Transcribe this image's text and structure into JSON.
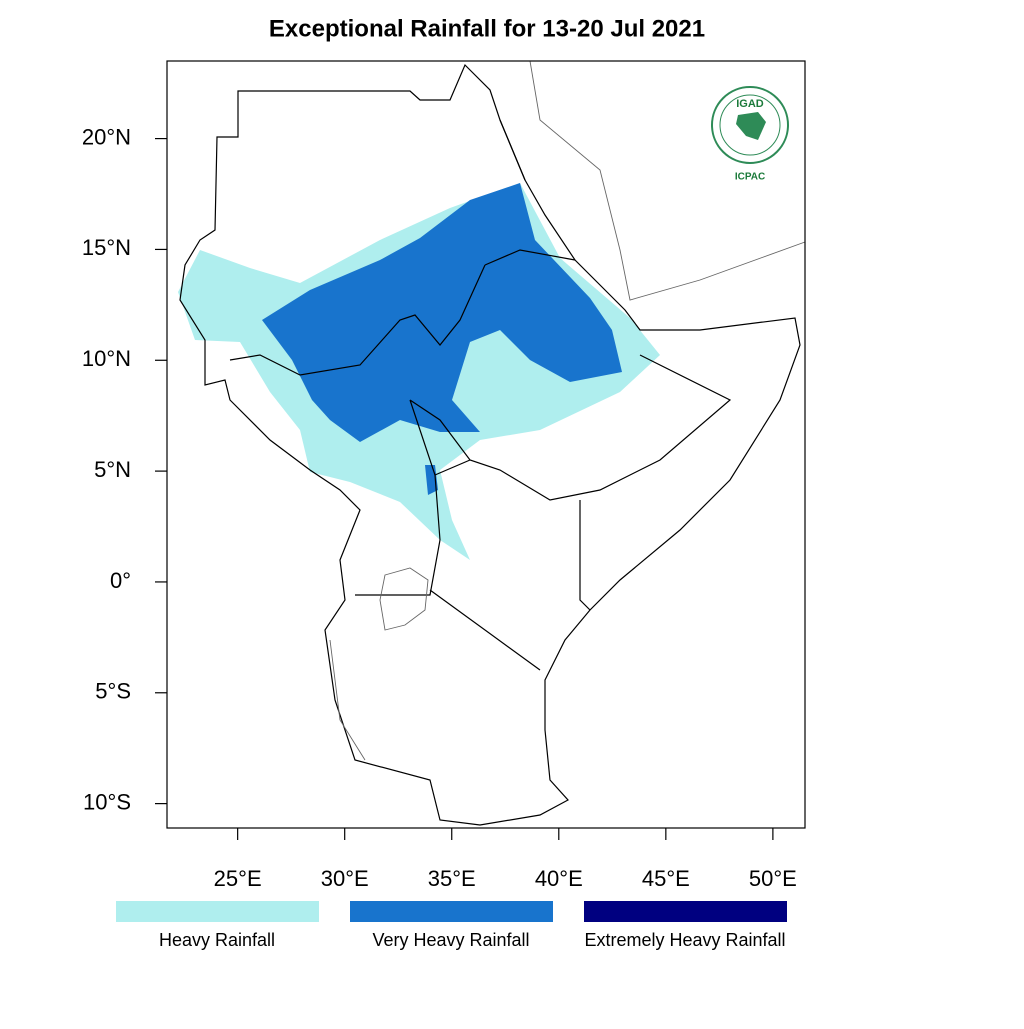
{
  "title": "Exceptional Rainfall for 13-20 Jul 2021",
  "map": {
    "xlim": [
      21.7,
      51.5
    ],
    "ylim": [
      -11.1,
      23.5
    ],
    "xticks": [
      {
        "value": 25,
        "label": "25°E"
      },
      {
        "value": 30,
        "label": "30°E"
      },
      {
        "value": 35,
        "label": "35°E"
      },
      {
        "value": 40,
        "label": "40°E"
      },
      {
        "value": 45,
        "label": "45°E"
      },
      {
        "value": 50,
        "label": "50°E"
      }
    ],
    "yticks": [
      {
        "value": 20,
        "label": "20°N"
      },
      {
        "value": 15,
        "label": "15°N"
      },
      {
        "value": 10,
        "label": "10°N"
      },
      {
        "value": 5,
        "label": "5°N"
      },
      {
        "value": 0,
        "label": "0°"
      },
      {
        "value": -5,
        "label": "5°S"
      },
      {
        "value": -10,
        "label": "10°S"
      }
    ]
  },
  "legend": [
    {
      "label": "Heavy Rainfall",
      "color": "#afeeee"
    },
    {
      "label": "Very Heavy Rainfall",
      "color": "#1874cd"
    },
    {
      "label": "Extremely Heavy Rainfall",
      "color": "#000080"
    }
  ],
  "logo": {
    "name": "IGAD",
    "center": "ICPAC"
  }
}
